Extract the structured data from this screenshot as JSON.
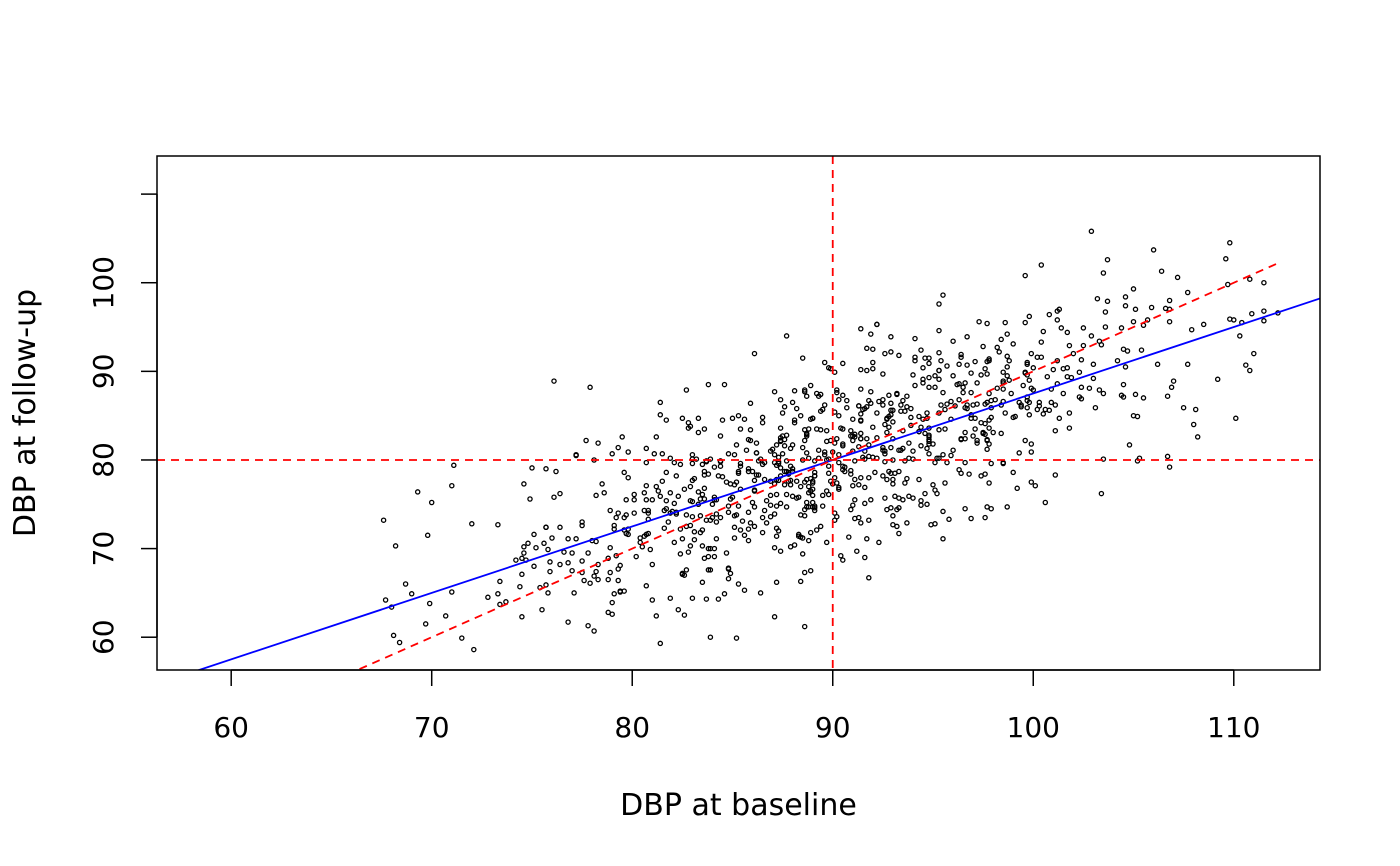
{
  "chart_data": {
    "type": "scatter",
    "title": "",
    "xlabel": "DBP at baseline",
    "ylabel": "DBP at follow-up",
    "xlim": [
      56.3,
      114.3
    ],
    "ylim": [
      56.3,
      114.3
    ],
    "xticks": [
      60,
      70,
      80,
      90,
      100,
      110
    ],
    "yticks": [
      60,
      70,
      80,
      90,
      100,
      110
    ],
    "xtick_labels": [
      "60",
      "70",
      "80",
      "90",
      "100",
      "110"
    ],
    "ytick_labels": [
      "60",
      "70",
      "80",
      "90",
      "100",
      ""
    ],
    "grid": false,
    "legend": "none",
    "point_marker": "open-circle",
    "n_points": 1000,
    "point_cloud": {
      "x_mean": 90,
      "x_sd": 9,
      "y_mean": 80,
      "corr": 0.75,
      "residual_sd": 5.5,
      "x_range": [
        67.5,
        112.3
      ],
      "y_range": [
        58.5,
        105.8
      ]
    },
    "points": [
      {
        "x": 67.6,
        "y": 73.2
      },
      {
        "x": 67.7,
        "y": 64.2
      },
      {
        "x": 68.4,
        "y": 59.4
      },
      {
        "x": 70.0,
        "y": 75.2
      },
      {
        "x": 72.1,
        "y": 58.6
      },
      {
        "x": 81.4,
        "y": 59.3
      },
      {
        "x": 83.9,
        "y": 60.0
      },
      {
        "x": 77.2,
        "y": 80.5
      },
      {
        "x": 79.5,
        "y": 82.6
      },
      {
        "x": 81.4,
        "y": 85.1
      },
      {
        "x": 83.8,
        "y": 88.5
      },
      {
        "x": 86.1,
        "y": 92.0
      },
      {
        "x": 87.7,
        "y": 94.0
      },
      {
        "x": 88.5,
        "y": 91.5
      },
      {
        "x": 91.4,
        "y": 94.8
      },
      {
        "x": 92.2,
        "y": 95.3
      },
      {
        "x": 95.3,
        "y": 97.6
      },
      {
        "x": 95.5,
        "y": 98.6
      },
      {
        "x": 97.3,
        "y": 95.6
      },
      {
        "x": 100.4,
        "y": 102.0
      },
      {
        "x": 102.9,
        "y": 105.8
      },
      {
        "x": 106.0,
        "y": 103.7
      },
      {
        "x": 109.6,
        "y": 102.7
      },
      {
        "x": 107.7,
        "y": 98.9
      },
      {
        "x": 111.5,
        "y": 96.8
      },
      {
        "x": 112.2,
        "y": 96.6
      },
      {
        "x": 110.3,
        "y": 94.0
      },
      {
        "x": 111.0,
        "y": 92.0
      },
      {
        "x": 110.6,
        "y": 90.7
      },
      {
        "x": 110.1,
        "y": 84.7
      },
      {
        "x": 108.0,
        "y": 84.0
      },
      {
        "x": 108.2,
        "y": 82.6
      },
      {
        "x": 103.5,
        "y": 80.1
      },
      {
        "x": 96.9,
        "y": 73.4
      },
      {
        "x": 97.6,
        "y": 73.5
      },
      {
        "x": 95.5,
        "y": 71.1
      },
      {
        "x": 91.2,
        "y": 69.7
      },
      {
        "x": 84.6,
        "y": 64.9
      },
      {
        "x": 85.6,
        "y": 65.3
      }
    ],
    "lines": [
      {
        "name": "",
        "kind": "regression",
        "slope": 0.75,
        "intercept": 12.5,
        "color": "#0000ff",
        "dash": "solid"
      },
      {
        "name": "",
        "kind": "reference",
        "slope": 1.0,
        "intercept": -10.0,
        "x_range": [
          66.4,
          112.2
        ],
        "color": "#ff0000",
        "dash": "dashed"
      },
      {
        "name": "",
        "kind": "vline",
        "x": 90,
        "color": "#ff0000",
        "dash": "dashed"
      },
      {
        "name": "",
        "kind": "hline",
        "y": 80,
        "color": "#ff0000",
        "dash": "dashed"
      }
    ],
    "colors": {
      "points": "#000000",
      "regression": "#0000ff",
      "reference": "#ff0000",
      "axes": "#000000"
    }
  }
}
